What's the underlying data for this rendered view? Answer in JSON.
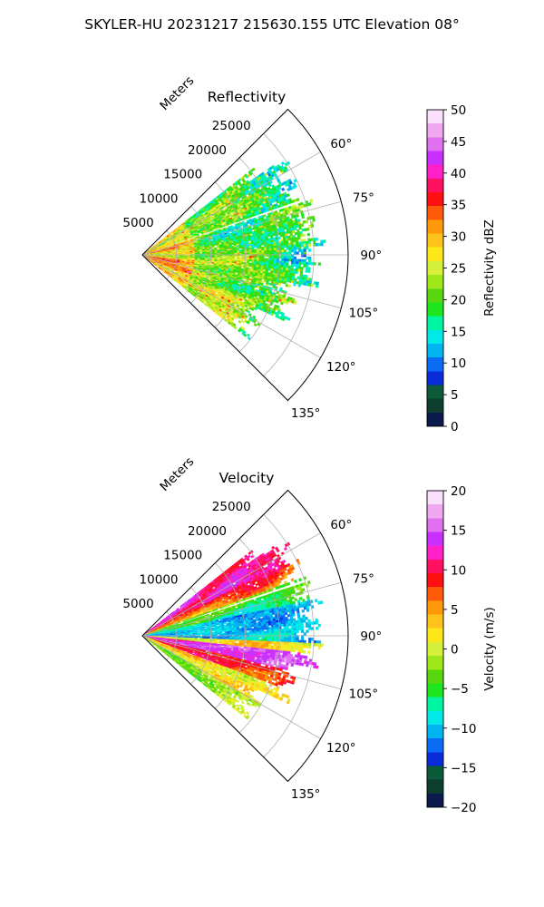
{
  "figure": {
    "suptitle": "SKYLER-HU  20231217  215630.155 UTC Elevation 08°"
  },
  "chart_data": [
    {
      "type": "heatmap",
      "projection": "polar-sector",
      "title": "Reflectivity",
      "radial_label": "Meters",
      "theta_range_deg": [
        45,
        135
      ],
      "r_range_m": [
        0,
        30000
      ],
      "r_ticks": [
        5000,
        10000,
        15000,
        20000,
        25000
      ],
      "r_tick_labels": [
        "5000",
        "10000",
        "15000",
        "20000",
        "25000"
      ],
      "theta_ticks": [
        60,
        75,
        90,
        105,
        120,
        135
      ],
      "theta_tick_labels": [
        "60°",
        "75°",
        "90°",
        "105°",
        "120°",
        "135°"
      ],
      "grid": true,
      "colorbar": {
        "label": "Reflectivity dBZ",
        "range": [
          0,
          50
        ],
        "ticks": [
          0,
          5,
          10,
          15,
          20,
          25,
          30,
          35,
          40,
          45,
          50
        ],
        "tick_labels": [
          "0",
          "5",
          "10",
          "15",
          "20",
          "25",
          "30",
          "35",
          "40",
          "45",
          "50"
        ],
        "colors": [
          "#0a1a4a",
          "#0d3d2f",
          "#0b5a3a",
          "#0a2bd8",
          "#0a6cf5",
          "#00b4f0",
          "#00e8e8",
          "#00f5a0",
          "#1ee61e",
          "#58d60e",
          "#9ee81a",
          "#d4f03a",
          "#ffe81a",
          "#ffc21a",
          "#ff9a0a",
          "#ff5a0a",
          "#ff1010",
          "#ff1060",
          "#ff20c8",
          "#c830ff",
          "#e070f0",
          "#f0a8f0",
          "#fbe0fb"
        ]
      },
      "echo_extent": {
        "theta_deg": [
          52,
          128
        ],
        "r_m": [
          0,
          24000
        ]
      }
    },
    {
      "type": "heatmap",
      "projection": "polar-sector",
      "title": "Velocity",
      "radial_label": "Meters",
      "theta_range_deg": [
        45,
        135
      ],
      "r_range_m": [
        0,
        30000
      ],
      "r_ticks": [
        5000,
        10000,
        15000,
        20000,
        25000
      ],
      "r_tick_labels": [
        "5000",
        "10000",
        "15000",
        "20000",
        "25000"
      ],
      "theta_ticks": [
        60,
        75,
        90,
        105,
        120,
        135
      ],
      "theta_tick_labels": [
        "60°",
        "75°",
        "90°",
        "105°",
        "120°",
        "135°"
      ],
      "grid": true,
      "colorbar": {
        "label": "Velocity (m/s)",
        "range": [
          -20,
          20
        ],
        "ticks": [
          -20,
          -15,
          -10,
          -5,
          0,
          5,
          10,
          15,
          20
        ],
        "tick_labels": [
          "−20",
          "−15",
          "−10",
          "−5",
          "0",
          "5",
          "10",
          "15",
          "20"
        ],
        "colors": [
          "#0a1a4a",
          "#0d3d2f",
          "#0b5a3a",
          "#0a2bd8",
          "#0a6cf5",
          "#00b4f0",
          "#00e8e8",
          "#00f5a0",
          "#1ee61e",
          "#58d60e",
          "#9ee81a",
          "#d4f03a",
          "#ffe81a",
          "#ffc21a",
          "#ff9a0a",
          "#ff5a0a",
          "#ff1010",
          "#ff1060",
          "#ff20c8",
          "#c830ff",
          "#e070f0",
          "#f0a8f0",
          "#fbe0fb"
        ]
      },
      "echo_extent": {
        "theta_deg": [
          52,
          128
        ],
        "r_m": [
          0,
          24000
        ]
      }
    }
  ]
}
